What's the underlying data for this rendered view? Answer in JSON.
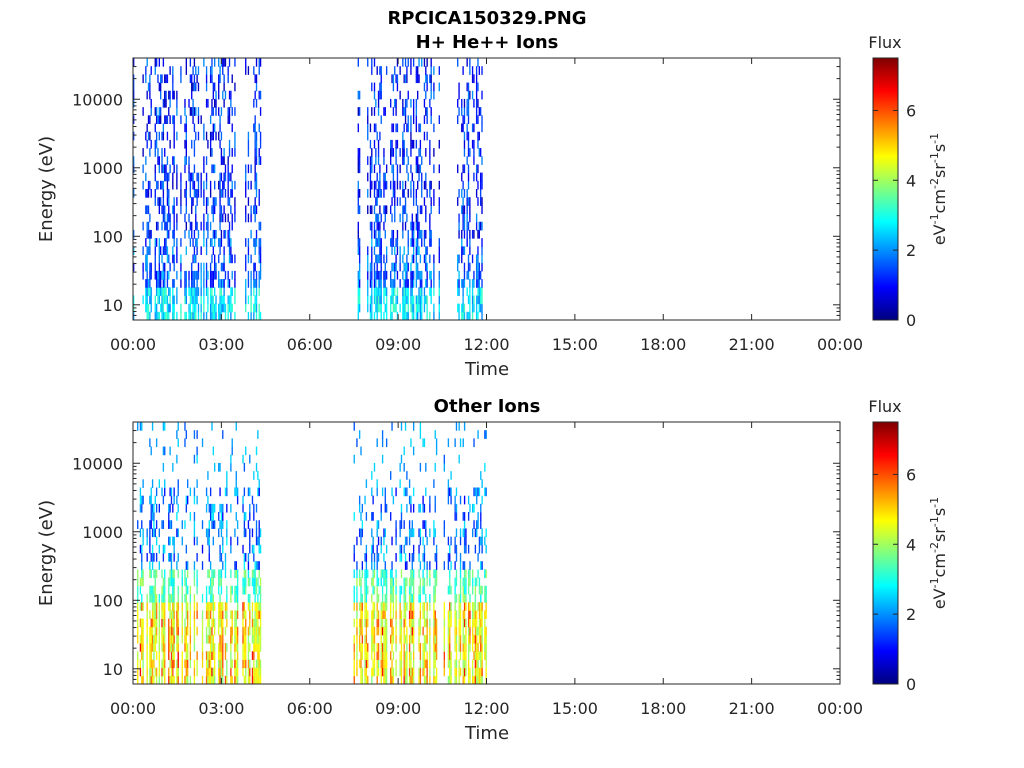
{
  "figure": {
    "title": "RPCICA150329.PNG"
  },
  "chart_data": [
    {
      "type": "heatmap",
      "title": "H+ He++ Ions",
      "xlabel": "Time",
      "ylabel": "Energy (eV)",
      "x_tick_labels": [
        "00:00",
        "03:00",
        "06:00",
        "09:00",
        "12:00",
        "15:00",
        "18:00",
        "21:00",
        "00:00"
      ],
      "xlim_hours": [
        0,
        24
      ],
      "y_scale": "log",
      "ylim": [
        6,
        40000
      ],
      "y_tick_values": [
        10,
        100,
        1000,
        10000
      ],
      "y_tick_labels": [
        "10",
        "100",
        "1000",
        "10000"
      ],
      "colorbar": {
        "label": "Flux",
        "unit_base": [
          "eV",
          "cm",
          "sr",
          "s"
        ],
        "unit_exponents": [
          "-1",
          "-2",
          "-1",
          "-1"
        ],
        "range": [
          0,
          7.5
        ],
        "tick_labels": [
          "0",
          "2",
          "4",
          "6"
        ],
        "colormap": "jet"
      },
      "data_intervals_hours": [
        [
          0.0,
          4.35
        ],
        [
          7.35,
          10.4
        ],
        [
          11.0,
          11.9
        ]
      ],
      "grid": false
    },
    {
      "type": "heatmap",
      "title": "Other Ions",
      "xlabel": "Time",
      "ylabel": "Energy (eV)",
      "x_tick_labels": [
        "00:00",
        "03:00",
        "06:00",
        "09:00",
        "12:00",
        "15:00",
        "18:00",
        "21:00",
        "00:00"
      ],
      "xlim_hours": [
        0,
        24
      ],
      "y_scale": "log",
      "ylim": [
        6,
        40000
      ],
      "y_tick_values": [
        10,
        100,
        1000,
        10000
      ],
      "y_tick_labels": [
        "10",
        "100",
        "1000",
        "10000"
      ],
      "colorbar": {
        "label": "Flux",
        "unit_base": [
          "eV",
          "cm",
          "sr",
          "s"
        ],
        "unit_exponents": [
          "-1",
          "-2",
          "-1",
          "-1"
        ],
        "range": [
          0,
          7.5
        ],
        "tick_labels": [
          "0",
          "2",
          "4",
          "6"
        ],
        "colormap": "jet"
      },
      "data_intervals_hours": [
        [
          0.0,
          4.35
        ],
        [
          7.35,
          10.4
        ],
        [
          10.5,
          12.0
        ]
      ],
      "grid": false
    }
  ]
}
